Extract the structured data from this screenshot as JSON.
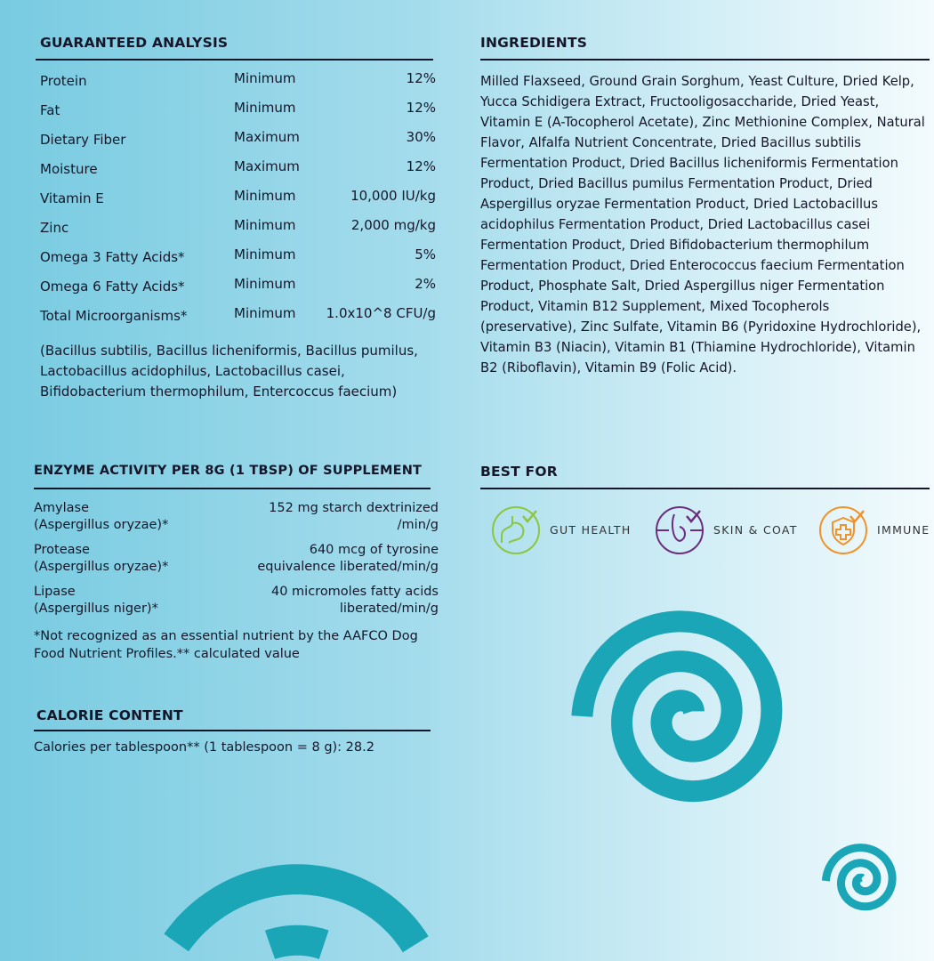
{
  "guaranteed_analysis": {
    "title": "GUARANTEED ANALYSIS",
    "rows": [
      {
        "name": "Protein",
        "qualifier": "Minimum",
        "value": "12%"
      },
      {
        "name": "Fat",
        "qualifier": "Minimum",
        "value": "12%"
      },
      {
        "name": "Dietary Fiber",
        "qualifier": "Maximum",
        "value": "30%"
      },
      {
        "name": "Moisture",
        "qualifier": "Maximum",
        "value": "12%"
      },
      {
        "name": "Vitamin E",
        "qualifier": "Minimum",
        "value": "10,000 IU/kg"
      },
      {
        "name": "Zinc",
        "qualifier": "Minimum",
        "value": "2,000 mg/kg"
      },
      {
        "name": "Omega 3 Fatty Acids*",
        "qualifier": "Minimum",
        "value": "5%"
      },
      {
        "name": "Omega 6 Fatty Acids*",
        "qualifier": "Minimum",
        "value": "2%"
      },
      {
        "name": "Total Microorganisms*",
        "qualifier": "Minimum",
        "value": "1.0x10^8 CFU/g"
      }
    ],
    "strains_note": "(Bacillus subtilis, Bacillus licheniformis, Bacillus pumilus, Lactobacillus acidophilus, Lactobacillus casei, Bifidobacterium thermophilum, Entercoccus faecium)"
  },
  "enzyme_activity": {
    "title": "ENZYME ACTIVITY PER 8G (1 TBSP) OF SUPPLEMENT",
    "rows": [
      {
        "name": "Amylase",
        "source": "(Aspergillus oryzae)*",
        "value1": "152 mg starch dextrinized",
        "value2": "/min/g"
      },
      {
        "name": "Protease",
        "source": "(Aspergillus oryzae)*",
        "value1": "640 mcg of tyrosine",
        "value2": "equivalence liberated/min/g"
      },
      {
        "name": "Lipase",
        "source": "(Aspergillus niger)*",
        "value1": "40 micromoles fatty acids",
        "value2": "liberated/min/g"
      }
    ],
    "footnote": "*Not recognized as an essential nutrient by the AAFCO Dog Food Nutrient Profiles.** calculated value"
  },
  "calorie_content": {
    "title": "CALORIE CONTENT",
    "text": "Calories per tablespoon** (1 tablespoon = 8 g): 28.2"
  },
  "ingredients": {
    "title": "INGREDIENTS",
    "text": "Milled Flaxseed, Ground Grain Sorghum, Yeast Culture, Dried Kelp, Yucca Schidigera Extract, Fructooligosaccharide, Dried Yeast, Vitamin E (A-Tocopherol Acetate), Zinc Methionine Complex, Natural Flavor, Alfalfa Nutrient Concentrate, Dried Bacillus subtilis Fermentation Product, Dried Bacillus licheniformis Fermentation Product, Dried Bacillus pumilus Fermentation Product, Dried Aspergillus oryzae Fermentation Product, Dried Lactobacillus acidophilus Fermentation Product, Dried Lactobacillus casei Fermentation Product, Dried Bifidobacterium thermophilum Fermentation Product, Dried Enterococcus faecium Fermentation Product, Phosphate Salt, Dried Aspergillus niger Fermentation Product, Vitamin B12 Supplement, Mixed Tocopherols (preservative), Zinc Sulfate, Vitamin B6 (Pyridoxine Hydrochloride), Vitamin B3 (Niacin), Vitamin B1 (Thiamine Hydrochloride), Vitamin B2 (Riboflavin), Vitamin B9 (Folic Acid)."
  },
  "best_for": {
    "title": "BEST FOR",
    "items": [
      {
        "label": "GUT HEALTH",
        "icon": "stomach-check-icon",
        "color": "#8cc63f"
      },
      {
        "label": "SKIN & COAT",
        "icon": "hair-follicle-check-icon",
        "color": "#6b2d7e"
      },
      {
        "label": "IMMUNE",
        "icon": "shield-cross-check-icon",
        "color": "#f0932b"
      }
    ]
  },
  "colors": {
    "text": "#16172a",
    "spiral": "#1aa6b7"
  }
}
